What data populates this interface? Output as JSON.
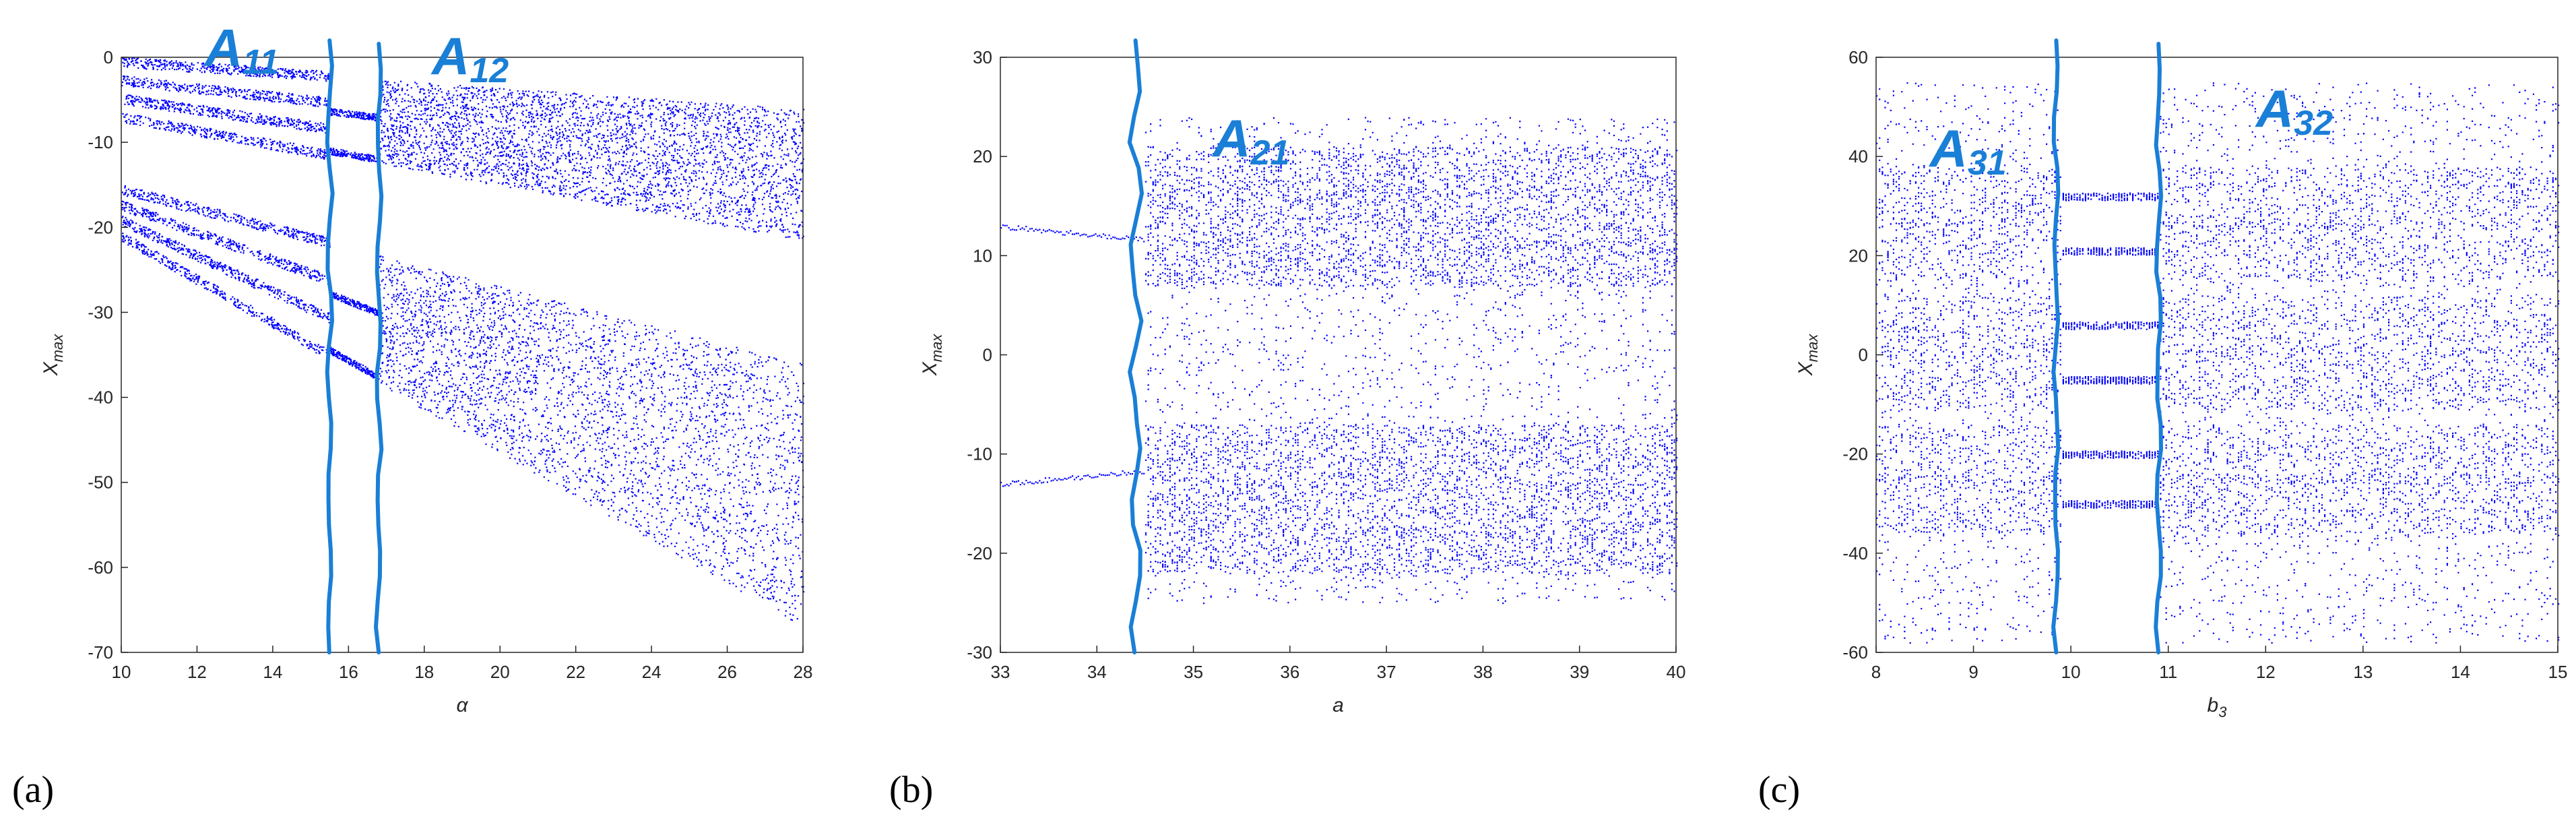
{
  "colors": {
    "points": "#0000ff",
    "annotation": "#1a7fd6",
    "axes": "#262626"
  },
  "chart_data": [
    {
      "type": "scatter",
      "panel": "(a)",
      "xlabel": "α",
      "ylabel": "X_max",
      "xlim": [
        10,
        28
      ],
      "ylim": [
        -70,
        0
      ],
      "xticks": [
        "10",
        "12",
        "14",
        "16",
        "18",
        "20",
        "22",
        "24",
        "26",
        "28"
      ],
      "yticks": [
        "-70",
        "-60",
        "-50",
        "-40",
        "-30",
        "-20",
        "-10",
        "0"
      ],
      "bands": [
        {
          "x0": 10,
          "x1": 28,
          "top0": -0.5,
          "top1": -6,
          "bot0": -7,
          "bot1": -21.5
        },
        {
          "x0": 10,
          "x1": 28,
          "top0": -15.5,
          "top1": -36,
          "bot0": -21,
          "bot1": -67
        }
      ],
      "boundaries": [
        15.5,
        16.8
      ],
      "region_labels": [
        {
          "text": "A11",
          "x": 12.2,
          "y": -1
        },
        {
          "text": "A12",
          "x": 18.2,
          "y": -2
        }
      ]
    },
    {
      "type": "scatter",
      "panel": "(b)",
      "xlabel": "a",
      "ylabel": "X_max",
      "xlim": [
        33,
        40
      ],
      "ylim": [
        -30,
        30
      ],
      "xticks": [
        "33",
        "34",
        "35",
        "36",
        "37",
        "38",
        "39",
        "40"
      ],
      "yticks": [
        "-30",
        "-20",
        "-10",
        "0",
        "10",
        "20",
        "30"
      ],
      "periodic_branches": [
        13,
        -13
      ],
      "chaos_onset": 34.5,
      "chaos_range": [
        -25,
        24
      ],
      "boundaries": [
        34.4
      ],
      "region_labels": [
        {
          "text": "A21",
          "x": 35.2,
          "y": 20
        }
      ]
    },
    {
      "type": "scatter",
      "panel": "(c)",
      "xlabel": "b_3",
      "ylabel": "X_max",
      "xlim": [
        8,
        15
      ],
      "ylim": [
        -60,
        60
      ],
      "xticks": [
        "8",
        "9",
        "10",
        "11",
        "12",
        "13",
        "14",
        "15"
      ],
      "yticks": [
        "-60",
        "-40",
        "-20",
        "0",
        "20",
        "40",
        "60"
      ],
      "branch_levels": [
        32,
        21,
        6,
        -5,
        -20,
        -30
      ],
      "chaos_range": [
        -58,
        55
      ],
      "window": [
        9.9,
        10.9
      ],
      "boundaries": [
        9.85,
        10.9
      ],
      "region_labels": [
        {
          "text": "A31",
          "x": 8.55,
          "y": 38
        },
        {
          "text": "A32",
          "x": 11.9,
          "y": 46
        }
      ]
    }
  ]
}
